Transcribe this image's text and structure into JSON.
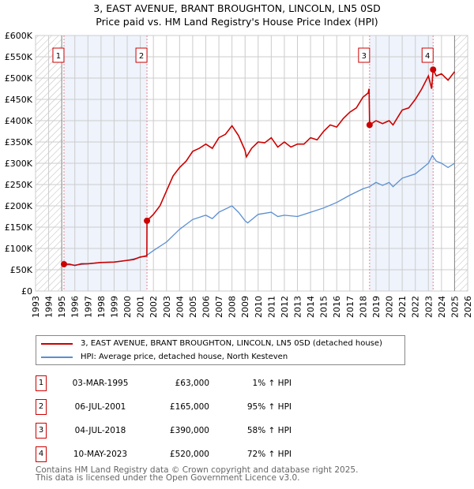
{
  "title_line1": "3, EAST AVENUE, BRANT BROUGHTON, LINCOLN, LN5 0SD",
  "title_line2": "Price paid vs. HM Land Registry's House Price Index (HPI)",
  "chart_data": {
    "type": "line",
    "title": "3, EAST AVENUE, BRANT BROUGHTON, LINCOLN, LN5 0SD - Price paid vs. HM Land Registry's House Price Index (HPI)",
    "xlim": [
      1993,
      2026
    ],
    "ylim": [
      0,
      600000
    ],
    "x_ticks": [
      1993,
      1994,
      1995,
      1996,
      1997,
      1998,
      1999,
      2000,
      2001,
      2002,
      2003,
      2004,
      2005,
      2006,
      2007,
      2008,
      2009,
      2010,
      2011,
      2012,
      2013,
      2014,
      2015,
      2016,
      2017,
      2018,
      2019,
      2020,
      2021,
      2022,
      2023,
      2024,
      2025,
      2026
    ],
    "y_ticks": [
      0,
      50000,
      100000,
      150000,
      200000,
      250000,
      300000,
      350000,
      400000,
      450000,
      500000,
      550000,
      600000
    ],
    "y_tick_labels": [
      "£0",
      "£50K",
      "£100K",
      "£150K",
      "£200K",
      "£250K",
      "£300K",
      "£350K",
      "£400K",
      "£450K",
      "£500K",
      "£550K",
      "£600K"
    ],
    "grid": true,
    "hatched_ranges": [
      [
        1993,
        1995
      ],
      [
        2025,
        2026
      ]
    ],
    "shaded_ranges": [
      [
        1995.17,
        2001.51
      ],
      [
        2018.51,
        2023.36
      ]
    ],
    "series": [
      {
        "name": "3, EAST AVENUE, BRANT BROUGHTON, LINCOLN, LN5 0SD (detached house)",
        "color": "#cc0000",
        "x": [
          1995.17,
          1995.6,
          1996,
          1996.5,
          1997,
          1998,
          1999,
          2000,
          2000.5,
          2001,
          2001.5,
          2001.51,
          2002,
          2002.5,
          2003,
          2003.5,
          2004,
          2004.5,
          2005,
          2005.5,
          2006,
          2006.5,
          2007,
          2007.5,
          2008,
          2008.5,
          2009,
          2009.1,
          2009.5,
          2010,
          2010.5,
          2011,
          2011.5,
          2012,
          2012.5,
          2013,
          2013.5,
          2014,
          2014.5,
          2015,
          2015.5,
          2016,
          2016.5,
          2017,
          2017.5,
          2018,
          2018.4,
          2018.47,
          2018.51,
          2019,
          2019.5,
          2020,
          2020.3,
          2020.7,
          2021,
          2021.5,
          2022,
          2022.5,
          2023,
          2023.25,
          2023.36,
          2023.6,
          2024,
          2024.5,
          2025
        ],
        "y": [
          63000,
          63000,
          60000,
          64000,
          64000,
          67000,
          68000,
          72000,
          74000,
          80000,
          82000,
          165000,
          180000,
          200000,
          235000,
          270000,
          290000,
          305000,
          328000,
          335000,
          345000,
          335000,
          360000,
          368000,
          388000,
          365000,
          330000,
          315000,
          335000,
          350000,
          348000,
          360000,
          338000,
          350000,
          338000,
          345000,
          345000,
          360000,
          355000,
          375000,
          390000,
          385000,
          405000,
          420000,
          430000,
          455000,
          465000,
          475000,
          390000,
          400000,
          393000,
          400000,
          390000,
          410000,
          425000,
          430000,
          450000,
          475000,
          505000,
          475000,
          520000,
          505000,
          510000,
          495000,
          515000
        ]
      },
      {
        "name": "HPI: Average price, detached house, North Kesteven",
        "color": "#5b8fd0",
        "x": [
          1995,
          1996,
          1997,
          1998,
          1999,
          2000,
          2001,
          2001.5,
          2002,
          2003,
          2004,
          2005,
          2006,
          2006.5,
          2007,
          2008,
          2008.5,
          2009,
          2009.2,
          2010,
          2011,
          2011.5,
          2012,
          2013,
          2014,
          2015,
          2016,
          2017,
          2018,
          2018.5,
          2019,
          2019.5,
          2020,
          2020.3,
          2021,
          2022,
          2023,
          2023.3,
          2023.6,
          2024,
          2024.5,
          2025
        ],
        "y": [
          62000,
          61000,
          64000,
          67000,
          68000,
          72000,
          79000,
          84000,
          95000,
          115000,
          145000,
          168000,
          178000,
          170000,
          185000,
          200000,
          185000,
          165000,
          160000,
          180000,
          185000,
          175000,
          178000,
          175000,
          185000,
          195000,
          208000,
          225000,
          240000,
          245000,
          255000,
          248000,
          255000,
          245000,
          265000,
          275000,
          300000,
          318000,
          305000,
          300000,
          290000,
          300000
        ]
      }
    ],
    "sales": [
      {
        "label": "1",
        "x": 1995.17,
        "price": 63000
      },
      {
        "label": "2",
        "x": 2001.51,
        "price": 165000
      },
      {
        "label": "3",
        "x": 2018.51,
        "price": 390000
      },
      {
        "label": "4",
        "x": 2023.36,
        "price": 520000
      }
    ]
  },
  "legend": [
    {
      "label": "3, EAST AVENUE, BRANT BROUGHTON, LINCOLN, LN5 0SD (detached house)",
      "color": "#cc0000"
    },
    {
      "label": "HPI: Average price, detached house, North Kesteven",
      "color": "#5b8fd0"
    }
  ],
  "transactions": [
    {
      "num": "1",
      "date": "03-MAR-1995",
      "price": "£63,000",
      "hpi": "1% ↑ HPI"
    },
    {
      "num": "2",
      "date": "06-JUL-2001",
      "price": "£165,000",
      "hpi": "95% ↑ HPI"
    },
    {
      "num": "3",
      "date": "04-JUL-2018",
      "price": "£390,000",
      "hpi": "58% ↑ HPI"
    },
    {
      "num": "4",
      "date": "10-MAY-2023",
      "price": "£520,000",
      "hpi": "72% ↑ HPI"
    }
  ],
  "footer_line1": "Contains HM Land Registry data © Crown copyright and database right 2025.",
  "footer_line2": "This data is licensed under the Open Government Licence v3.0."
}
